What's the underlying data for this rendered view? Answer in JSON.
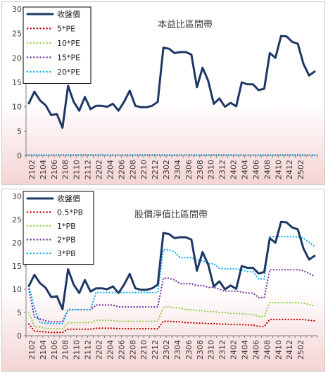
{
  "chart_data": [
    {
      "type": "line",
      "title": "本益比區間帶",
      "ylim": [
        0,
        30
      ],
      "yticks": [
        "0",
        "5",
        "10",
        "15",
        "20",
        "25",
        "30"
      ],
      "xtick_labels": [
        "2102",
        "2104",
        "2106",
        "2108",
        "2110",
        "2112",
        "2202",
        "2204",
        "2206",
        "2208",
        "2210",
        "2212",
        "2302",
        "2304",
        "2306",
        "2308",
        "2310",
        "2312",
        "2402",
        "2404",
        "2406",
        "2408",
        "2410",
        "2412",
        "2502"
      ],
      "series": [
        {
          "name": "收盤價",
          "color": "#1f3864",
          "style": "solid",
          "values": [
            10.7,
            13.1,
            11.3,
            10.3,
            8.3,
            8.5,
            5.7,
            14.3,
            11.0,
            9.2,
            12.0,
            9.5,
            10.2,
            10.2,
            10.0,
            10.6,
            9.2,
            11.0,
            13.3,
            10.2,
            9.9,
            9.9,
            10.2,
            11.0,
            22.1,
            21.9,
            21.0,
            21.2,
            21.2,
            20.7,
            14.0,
            18.0,
            15.3,
            10.6,
            11.7,
            10.0,
            10.8,
            10.1,
            15.0,
            14.6,
            14.6,
            13.4,
            13.7,
            21.0,
            20.0,
            24.5,
            24.4,
            23.3,
            22.9,
            18.8,
            16.4,
            17.2
          ]
        },
        {
          "name": "5*PE",
          "color": "#c00000",
          "style": "dotted",
          "values": []
        },
        {
          "name": "10*PE",
          "color": "#92d050",
          "style": "dotted",
          "values": []
        },
        {
          "name": "15*PE",
          "color": "#7030a0",
          "style": "dotted",
          "values": []
        },
        {
          "name": "20*PE",
          "color": "#00b0f0",
          "style": "dotted",
          "values": []
        }
      ],
      "legend_position": "top-left",
      "grid": false
    },
    {
      "type": "line",
      "title": "股價淨值比區間帶",
      "ylim": [
        0,
        30
      ],
      "yticks": [
        "0",
        "5",
        "10",
        "15",
        "20",
        "25",
        "30"
      ],
      "xtick_labels": [
        "2102",
        "2104",
        "2106",
        "2108",
        "2110",
        "2112",
        "2202",
        "2204",
        "2206",
        "2208",
        "2210",
        "2212",
        "2302",
        "2304",
        "2306",
        "2308",
        "2310",
        "2312",
        "2402",
        "2404",
        "2406",
        "2408",
        "2410",
        "2412",
        "2502"
      ],
      "series": [
        {
          "name": "收盤價",
          "color": "#1f3864",
          "style": "solid",
          "values": [
            10.7,
            13.1,
            11.3,
            10.3,
            8.3,
            8.5,
            5.7,
            14.3,
            11.0,
            9.2,
            12.0,
            9.5,
            10.2,
            10.2,
            10.0,
            10.6,
            9.2,
            11.0,
            13.3,
            10.2,
            9.9,
            9.9,
            10.2,
            11.0,
            22.1,
            21.9,
            21.0,
            21.2,
            21.2,
            20.7,
            14.0,
            18.0,
            15.3,
            10.6,
            11.7,
            10.0,
            10.8,
            10.1,
            15.0,
            14.6,
            14.6,
            13.4,
            13.7,
            21.0,
            20.0,
            24.5,
            24.4,
            23.3,
            22.9,
            18.8,
            16.4,
            17.2
          ]
        },
        {
          "name": "0.5*PB",
          "color": "#c00000",
          "style": "dotted",
          "values": [
            2.5,
            1.0,
            0.9,
            0.8,
            0.7,
            0.7,
            0.7,
            1.4,
            1.4,
            1.4,
            1.4,
            1.4,
            1.6,
            1.6,
            1.6,
            1.6,
            1.5,
            1.5,
            1.5,
            1.5,
            1.5,
            1.5,
            1.5,
            1.5,
            3.1,
            3.1,
            3.0,
            3.0,
            2.8,
            2.8,
            2.7,
            2.7,
            2.6,
            2.6,
            2.5,
            2.5,
            2.4,
            2.4,
            2.4,
            2.3,
            2.3,
            2.0,
            2.0,
            3.5,
            3.5,
            3.5,
            3.5,
            3.5,
            3.5,
            3.5,
            3.3,
            3.2
          ]
        },
        {
          "name": "1*PB",
          "color": "#92d050",
          "style": "dotted",
          "values": [
            5.0,
            2.0,
            1.8,
            1.6,
            1.5,
            1.5,
            1.5,
            2.8,
            2.8,
            2.8,
            2.8,
            2.8,
            3.3,
            3.3,
            3.3,
            3.3,
            3.1,
            3.1,
            3.1,
            3.1,
            3.1,
            3.1,
            3.1,
            3.1,
            6.2,
            6.2,
            6.0,
            6.0,
            5.6,
            5.6,
            5.4,
            5.4,
            5.2,
            5.2,
            5.0,
            5.0,
            4.8,
            4.8,
            4.7,
            4.6,
            4.6,
            4.1,
            4.1,
            7.1,
            7.1,
            7.1,
            7.1,
            7.1,
            7.1,
            7.0,
            6.7,
            6.4
          ]
        },
        {
          "name": "2*PB",
          "color": "#7030a0",
          "style": "dotted",
          "values": [
            10.0,
            4.0,
            3.6,
            3.2,
            3.0,
            3.0,
            3.0,
            5.6,
            5.6,
            5.6,
            5.6,
            5.6,
            6.6,
            6.6,
            6.6,
            6.6,
            6.2,
            6.2,
            6.2,
            6.2,
            6.2,
            6.2,
            6.2,
            6.2,
            12.4,
            12.4,
            12.0,
            11.2,
            11.2,
            11.2,
            10.8,
            10.8,
            10.4,
            10.4,
            10.0,
            9.6,
            9.6,
            9.6,
            9.4,
            9.2,
            9.2,
            8.2,
            8.2,
            14.2,
            14.2,
            14.2,
            14.2,
            14.2,
            14.2,
            14.0,
            13.4,
            12.8
          ]
        },
        {
          "name": "3*PB",
          "color": "#00b0f0",
          "style": "dotted",
          "values": [
            10.7,
            6.0,
            2.8,
            2.7,
            2.6,
            2.6,
            2.6,
            5.6,
            5.6,
            5.6,
            5.6,
            5.6,
            9.3,
            9.3,
            9.3,
            9.3,
            9.3,
            9.3,
            9.3,
            9.3,
            9.3,
            9.3,
            9.3,
            9.3,
            18.5,
            18.5,
            18.0,
            16.8,
            16.8,
            16.8,
            16.2,
            16.2,
            15.5,
            15.5,
            14.5,
            14.4,
            14.4,
            14.4,
            14.2,
            13.8,
            13.8,
            12.2,
            12.2,
            21.3,
            21.3,
            21.3,
            21.3,
            21.3,
            21.3,
            21.0,
            20.1,
            19.2
          ]
        }
      ],
      "legend_position": "top-left",
      "grid": false
    }
  ]
}
